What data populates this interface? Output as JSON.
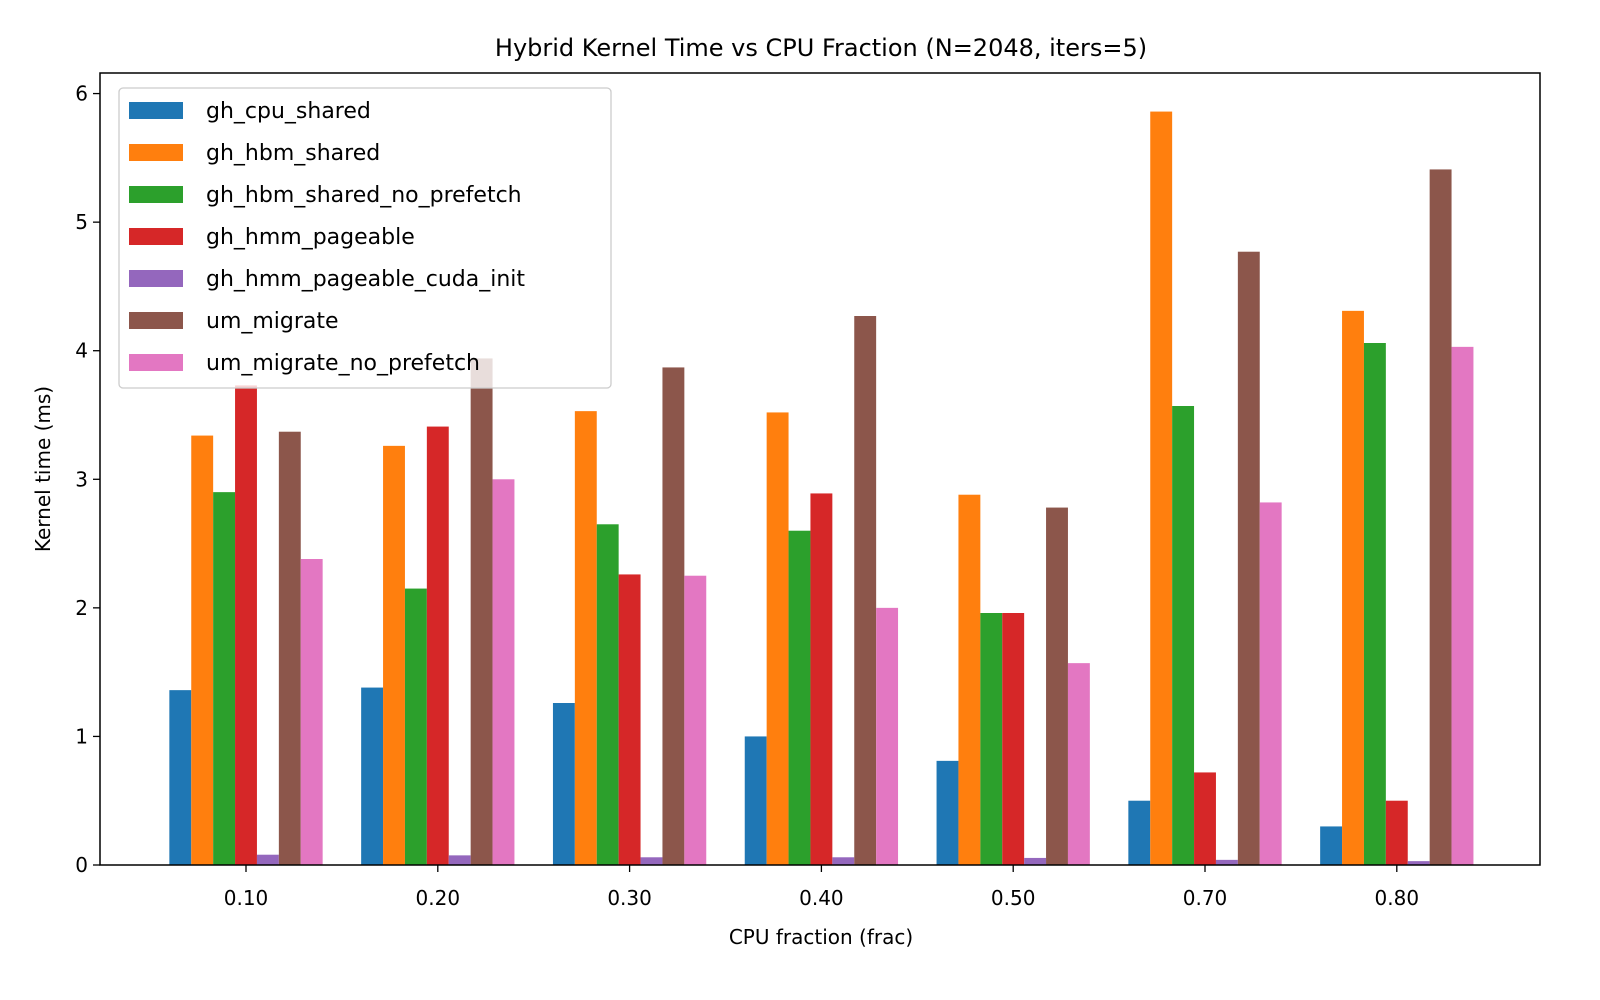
{
  "chart_data": {
    "type": "bar",
    "title": "Hybrid Kernel Time vs CPU Fraction (N=2048, iters=5)",
    "xlabel": "CPU fraction (frac)",
    "ylabel": "Kernel time (ms)",
    "categories": [
      "0.10",
      "0.20",
      "0.30",
      "0.40",
      "0.50",
      "0.70",
      "0.80"
    ],
    "ylim": [
      0,
      6.16
    ],
    "yticks": [
      "0",
      "1",
      "2",
      "3",
      "4",
      "5",
      "6"
    ],
    "grid": false,
    "legend_position": "top-left",
    "series": [
      {
        "name": "gh_cpu_shared",
        "color": "#1f77b4",
        "values": [
          1.36,
          1.38,
          1.26,
          1.0,
          0.81,
          0.5,
          0.3
        ]
      },
      {
        "name": "gh_hbm_shared",
        "color": "#ff7f0e",
        "values": [
          3.34,
          3.26,
          3.53,
          3.52,
          2.88,
          5.86,
          4.31
        ]
      },
      {
        "name": "gh_hbm_shared_no_prefetch",
        "color": "#2ca02c",
        "values": [
          2.9,
          2.15,
          2.65,
          2.6,
          1.96,
          3.57,
          4.06
        ]
      },
      {
        "name": "gh_hmm_pageable",
        "color": "#d62728",
        "values": [
          3.73,
          3.41,
          2.26,
          2.89,
          1.96,
          0.72,
          0.5
        ]
      },
      {
        "name": "gh_hmm_pageable_cuda_init",
        "color": "#9467bd",
        "values": [
          0.08,
          0.075,
          0.06,
          0.06,
          0.055,
          0.04,
          0.03
        ]
      },
      {
        "name": "um_migrate",
        "color": "#8c564b",
        "values": [
          3.37,
          3.94,
          3.87,
          4.27,
          2.78,
          4.77,
          5.41
        ]
      },
      {
        "name": "um_migrate_no_prefetch",
        "color": "#e377c2",
        "values": [
          2.38,
          3.0,
          2.25,
          2.0,
          1.57,
          2.82,
          4.03
        ]
      }
    ]
  }
}
